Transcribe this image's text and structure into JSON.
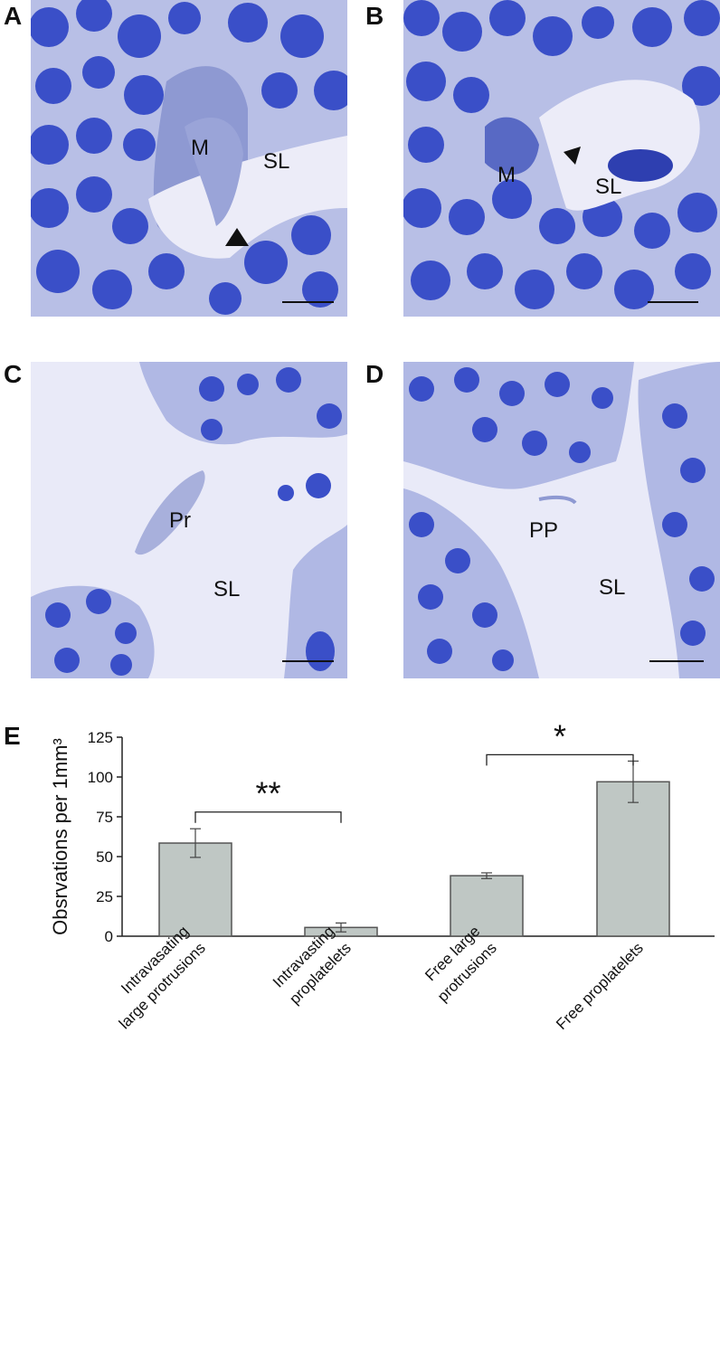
{
  "panels": [
    {
      "letter": "A",
      "labels": {
        "m": "M",
        "sl": "SL"
      }
    },
    {
      "letter": "B",
      "labels": {
        "m": "M",
        "sl": "SL"
      }
    },
    {
      "letter": "C",
      "labels": {
        "pr": "Pr",
        "sl": "SL"
      }
    },
    {
      "letter": "D",
      "labels": {
        "pp": "PP",
        "sl": "SL"
      }
    },
    {
      "letter": "E"
    }
  ],
  "colors": {
    "stain_background": "#b6bde6",
    "lumen": "#e9eaf8",
    "nucleus": "#3a4fc8",
    "bar_fill": "#bfc7c4",
    "bar_stroke": "#555555"
  },
  "chart_data": {
    "type": "bar",
    "categories": [
      [
        "Intravasating",
        "large protrusions"
      ],
      [
        "Intravasting",
        "proplatelets"
      ],
      [
        "Free large",
        "protrusions"
      ],
      [
        "Free proplatelets"
      ]
    ],
    "values": [
      58.5,
      5.5,
      38,
      97
    ],
    "errors": [
      9,
      2.8,
      1.8,
      13
    ],
    "ylabel": "Obsrvations per 1mm³",
    "ylim": [
      0,
      125
    ],
    "yticks": [
      0,
      25,
      50,
      75,
      100,
      125
    ],
    "significance": [
      {
        "from": 0,
        "to": 1,
        "label": "**",
        "y": 78
      },
      {
        "from": 2,
        "to": 3,
        "label": "*",
        "y": 114
      }
    ]
  }
}
